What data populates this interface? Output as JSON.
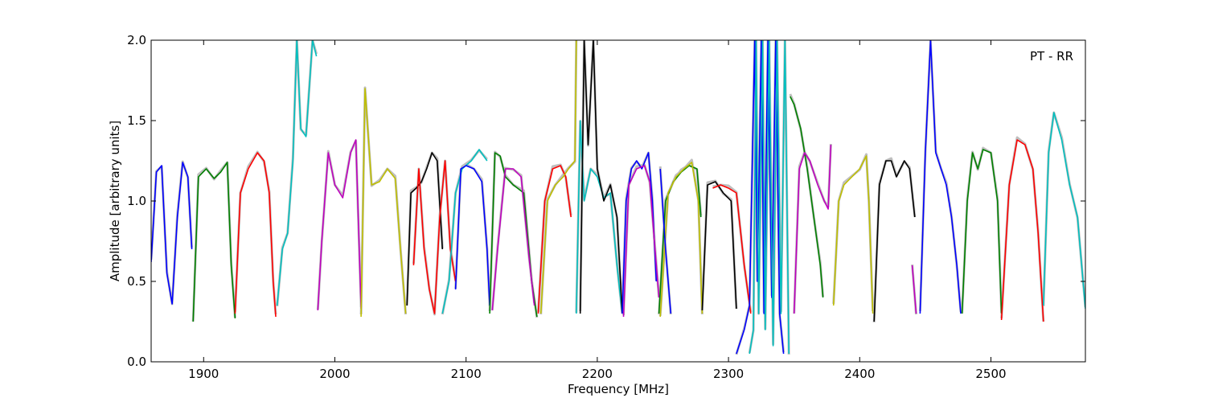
{
  "chart_data": {
    "type": "line",
    "xlabel": "Frequency [MHz]",
    "ylabel": "Amplitude [arbitrary units]",
    "annotation": "PT - RR",
    "xlim": [
      1860,
      2572
    ],
    "ylim": [
      0.0,
      2.0
    ],
    "xticks": [
      1900,
      2000,
      2100,
      2200,
      2300,
      2400,
      2500
    ],
    "yticks": [
      0.0,
      0.5,
      1.0,
      1.5,
      2.0
    ],
    "ytick_labels": [
      "0.0",
      "0.5",
      "1.0",
      "1.5",
      "2.0"
    ],
    "grid": false,
    "background_color": "#bfbfbf",
    "series": [
      {
        "color": "#0000ff",
        "x": [
          1860,
          1864,
          1868,
          1872,
          1876,
          1880,
          1884,
          1888,
          1891
        ],
        "y": [
          0.62,
          1.18,
          1.22,
          0.55,
          0.36,
          0.9,
          1.24,
          1.15,
          0.7
        ]
      },
      {
        "color": "#008000",
        "x": [
          1892,
          1896,
          1902,
          1908,
          1913,
          1918,
          1921,
          1924
        ],
        "y": [
          0.25,
          1.15,
          1.2,
          1.14,
          1.18,
          1.24,
          0.6,
          0.27
        ]
      },
      {
        "color": "#ff0000",
        "x": [
          1924,
          1928,
          1934,
          1941,
          1946,
          1950,
          1953,
          1955
        ],
        "y": [
          0.3,
          1.05,
          1.2,
          1.3,
          1.25,
          1.05,
          0.5,
          0.28
        ]
      },
      {
        "color": "#00bfbf",
        "x": [
          1956,
          1960,
          1964,
          1968,
          1971,
          1974,
          1978,
          1983,
          1986
        ],
        "y": [
          0.35,
          0.7,
          0.8,
          1.25,
          2.0,
          1.45,
          1.4,
          2.0,
          1.9
        ]
      },
      {
        "color": "#bf00bf",
        "x": [
          1987,
          1990,
          1995,
          2000,
          2006,
          2012,
          2016,
          2020
        ],
        "y": [
          0.32,
          0.75,
          1.3,
          1.1,
          1.02,
          1.3,
          1.38,
          0.33
        ]
      },
      {
        "color": "#bfbf00",
        "x": [
          2020,
          2023,
          2028,
          2034,
          2040,
          2046,
          2050,
          2054
        ],
        "y": [
          0.28,
          1.7,
          1.1,
          1.12,
          1.2,
          1.14,
          0.7,
          0.3
        ]
      },
      {
        "color": "#000000",
        "x": [
          2055,
          2058,
          2062,
          2066,
          2070,
          2074,
          2078,
          2082
        ],
        "y": [
          0.35,
          1.05,
          1.08,
          1.12,
          1.2,
          1.3,
          1.25,
          0.7
        ]
      },
      {
        "color": "#ff0000",
        "x": [
          2060,
          2064,
          2068,
          2072,
          2076,
          2080,
          2084,
          2088,
          2092
        ],
        "y": [
          0.6,
          1.2,
          0.7,
          0.45,
          0.3,
          0.9,
          1.25,
          0.7,
          0.5
        ]
      },
      {
        "color": "#00bfbf",
        "x": [
          2082,
          2087,
          2092,
          2097,
          2104,
          2110,
          2116
        ],
        "y": [
          0.3,
          0.5,
          1.05,
          1.2,
          1.25,
          1.32,
          1.25
        ]
      },
      {
        "color": "#0000ff",
        "x": [
          2092,
          2096,
          2100,
          2106,
          2112,
          2116,
          2118
        ],
        "y": [
          0.45,
          1.2,
          1.22,
          1.2,
          1.12,
          0.7,
          0.35
        ]
      },
      {
        "color": "#008000",
        "x": [
          2118,
          2122,
          2126,
          2130,
          2136,
          2144,
          2150,
          2154
        ],
        "y": [
          0.3,
          1.3,
          1.28,
          1.15,
          1.1,
          1.05,
          0.5,
          0.28
        ]
      },
      {
        "color": "#bf00bf",
        "x": [
          2120,
          2124,
          2130,
          2136,
          2142,
          2148,
          2152
        ],
        "y": [
          0.32,
          0.7,
          1.2,
          1.2,
          1.15,
          0.65,
          0.35
        ]
      },
      {
        "color": "#ff0000",
        "x": [
          2155,
          2160,
          2166,
          2172,
          2176,
          2180
        ],
        "y": [
          0.3,
          1.0,
          1.2,
          1.22,
          1.15,
          0.9
        ]
      },
      {
        "color": "#bfbf00",
        "x": [
          2157,
          2162,
          2168,
          2174,
          2178,
          2183,
          2184
        ],
        "y": [
          0.3,
          1.0,
          1.1,
          1.15,
          1.2,
          1.25,
          2.0
        ]
      },
      {
        "color": "#00bfbf",
        "x": [
          2184,
          2187,
          2190,
          2195,
          2200,
          2205,
          2210,
          2215,
          2219
        ],
        "y": [
          0.3,
          1.5,
          1.0,
          1.2,
          1.15,
          1.02,
          1.05,
          0.6,
          0.3
        ]
      },
      {
        "color": "#000000",
        "x": [
          2187,
          2190,
          2193,
          2197,
          2200,
          2205,
          2210,
          2215,
          2219
        ],
        "y": [
          0.3,
          2.0,
          1.35,
          2.0,
          1.2,
          1.0,
          1.1,
          0.9,
          0.3
        ]
      },
      {
        "color": "#0000ff",
        "x": [
          2219,
          2222,
          2226,
          2230,
          2234,
          2239,
          2242,
          2245
        ],
        "y": [
          0.3,
          1.0,
          1.2,
          1.25,
          1.2,
          1.3,
          1.0,
          0.5
        ]
      },
      {
        "color": "#bf00bf",
        "x": [
          2220,
          2224,
          2230,
          2236,
          2240,
          2244,
          2247
        ],
        "y": [
          0.28,
          1.1,
          1.2,
          1.22,
          1.12,
          0.7,
          0.4
        ]
      },
      {
        "color": "#008000",
        "x": [
          2247,
          2252,
          2258,
          2264,
          2270,
          2276,
          2279
        ],
        "y": [
          0.3,
          1.0,
          1.12,
          1.18,
          1.22,
          1.2,
          0.9
        ]
      },
      {
        "color": "#bfbf00",
        "x": [
          2248,
          2254,
          2260,
          2266,
          2272,
          2277,
          2280
        ],
        "y": [
          0.28,
          1.05,
          1.15,
          1.2,
          1.24,
          1.0,
          0.3
        ]
      },
      {
        "color": "#0000ff",
        "x": [
          2248,
          2252,
          2256
        ],
        "y": [
          1.2,
          0.7,
          0.3
        ]
      },
      {
        "color": "#000000",
        "x": [
          2280,
          2284,
          2290,
          2296,
          2302,
          2306
        ],
        "y": [
          0.32,
          1.1,
          1.12,
          1.05,
          1.0,
          0.33
        ]
      },
      {
        "color": "#ff0000",
        "x": [
          2288,
          2294,
          2300,
          2306,
          2312,
          2317
        ],
        "y": [
          1.08,
          1.1,
          1.08,
          1.05,
          0.6,
          0.3
        ]
      },
      {
        "color": "#0000ff",
        "x": [
          2306,
          2312,
          2316,
          2320,
          2322,
          2325,
          2327,
          2330,
          2333,
          2336,
          2339,
          2342
        ],
        "y": [
          0.05,
          0.2,
          0.35,
          2.0,
          0.5,
          2.0,
          0.3,
          2.0,
          0.4,
          2.0,
          0.3,
          0.05
        ]
      },
      {
        "color": "#00bfbf",
        "x": [
          2316,
          2319,
          2321,
          2323,
          2326,
          2328,
          2331,
          2334,
          2337,
          2340,
          2343,
          2346
        ],
        "y": [
          0.05,
          0.2,
          2.0,
          0.3,
          2.0,
          0.2,
          2.0,
          0.1,
          2.0,
          0.3,
          2.0,
          0.05
        ]
      },
      {
        "color": "#008000",
        "x": [
          2347,
          2350,
          2355,
          2360,
          2365,
          2370,
          2372
        ],
        "y": [
          1.65,
          1.6,
          1.45,
          1.2,
          0.9,
          0.6,
          0.4
        ]
      },
      {
        "color": "#bf00bf",
        "x": [
          2350,
          2354,
          2358,
          2362,
          2368,
          2373,
          2376,
          2378
        ],
        "y": [
          0.3,
          1.2,
          1.3,
          1.25,
          1.1,
          1.0,
          0.95,
          1.35
        ]
      },
      {
        "color": "#bfbf00",
        "x": [
          2380,
          2384,
          2388,
          2394,
          2400,
          2405,
          2407,
          2410
        ],
        "y": [
          0.35,
          1.0,
          1.1,
          1.15,
          1.2,
          1.28,
          1.0,
          0.3
        ]
      },
      {
        "color": "#000000",
        "x": [
          2411,
          2415,
          2420,
          2424,
          2428,
          2434,
          2438,
          2442
        ],
        "y": [
          0.25,
          1.1,
          1.25,
          1.25,
          1.15,
          1.25,
          1.2,
          0.9
        ]
      },
      {
        "color": "#bf00bf",
        "x": [
          2440,
          2443
        ],
        "y": [
          0.6,
          0.3
        ]
      },
      {
        "color": "#0000ff",
        "x": [
          2446,
          2450,
          2454,
          2458,
          2462,
          2466,
          2470,
          2474,
          2477
        ],
        "y": [
          0.3,
          1.3,
          2.0,
          1.3,
          1.2,
          1.1,
          0.9,
          0.6,
          0.3
        ]
      },
      {
        "color": "#008000",
        "x": [
          2478,
          2482,
          2486,
          2490,
          2494,
          2500,
          2505,
          2508
        ],
        "y": [
          0.3,
          1.0,
          1.3,
          1.2,
          1.32,
          1.3,
          1.0,
          0.3
        ]
      },
      {
        "color": "#ff0000",
        "x": [
          2508,
          2514,
          2520,
          2526,
          2532,
          2536,
          2540
        ],
        "y": [
          0.26,
          1.1,
          1.38,
          1.35,
          1.2,
          0.8,
          0.25
        ]
      },
      {
        "color": "#00bfbf",
        "x": [
          2540,
          2544,
          2548,
          2554,
          2560,
          2566,
          2572
        ],
        "y": [
          0.35,
          1.3,
          1.55,
          1.38,
          1.1,
          0.9,
          0.33
        ]
      }
    ]
  }
}
